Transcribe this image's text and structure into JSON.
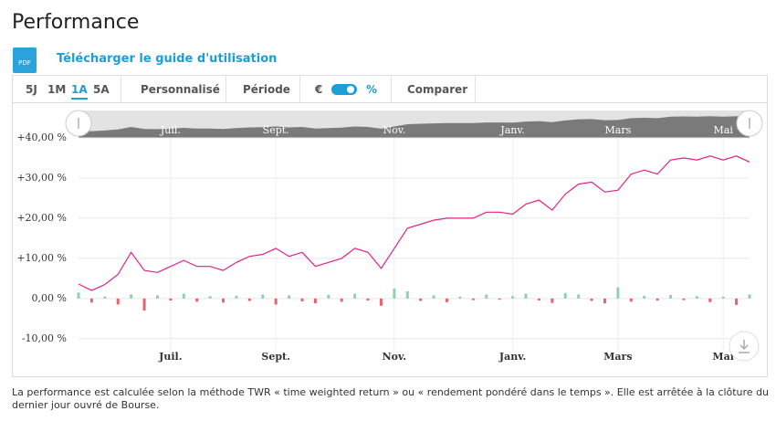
{
  "header": {
    "title": "Performance",
    "pdf_icon": "PDF",
    "guide_link": "Télécharger le guide d'utilisation"
  },
  "toolbar": {
    "ranges": [
      "5J",
      "1M",
      "1A",
      "5A"
    ],
    "custom": "Personnalisé",
    "period": "Période",
    "currency": "€",
    "percent": "%",
    "compare": "Comparer"
  },
  "chart_data": {
    "type": "line",
    "categories": [
      null,
      null,
      null,
      null,
      null,
      null,
      null,
      "Juil.",
      null,
      null,
      null,
      null,
      null,
      null,
      null,
      "Sept.",
      null,
      null,
      null,
      null,
      null,
      null,
      null,
      null,
      "Nov.",
      null,
      null,
      null,
      null,
      null,
      null,
      null,
      null,
      "Janv.",
      null,
      null,
      null,
      null,
      null,
      null,
      null,
      "Mars",
      null,
      null,
      null,
      null,
      null,
      null,
      null,
      "Mai",
      null,
      null
    ],
    "series": [
      {
        "color": "#e0218a",
        "values": [
          3.6,
          2,
          3.5,
          6,
          11.5,
          7,
          6.5,
          8,
          9.5,
          8,
          8,
          7,
          9,
          10.5,
          11,
          12.5,
          10.5,
          11.5,
          8,
          9,
          10,
          12.5,
          11.5,
          7.5,
          12.5,
          17.5,
          18.5,
          19.5,
          20,
          20,
          20,
          21.5,
          21.5,
          21,
          23.5,
          24.5,
          22,
          26,
          28.5,
          29,
          26.5,
          27,
          31,
          32,
          31,
          34.5,
          35,
          34.5,
          35.5,
          34.5,
          35.5,
          34
        ]
      },
      {
        "type": "bar",
        "pos_color": "#8ed1b6",
        "neg_color": "#e8636f",
        "values": [
          1.5,
          -1,
          0.5,
          -1.5,
          1,
          -3,
          0.8,
          -0.5,
          1.2,
          -0.8,
          0.6,
          -1,
          0.7,
          -0.6,
          1,
          -1.5,
          0.8,
          -0.7,
          -1.2,
          0.9,
          -0.8,
          1.2,
          -0.5,
          -1.8,
          2.5,
          1.8,
          -0.6,
          0.8,
          -0.9,
          0.5,
          -0.4,
          1.0,
          -0.3,
          0.6,
          1.2,
          -0.5,
          -1.1,
          1.4,
          1.0,
          -0.6,
          -1.2,
          2.8,
          -0.8,
          0.7,
          -0.5,
          0.9,
          -0.4,
          0.6,
          -0.9,
          0.5,
          -1.6,
          1.0
        ]
      }
    ],
    "ylim": [
      -13,
      40
    ],
    "yticks": [
      {
        "value": -10,
        "label": "-10,00 %"
      },
      {
        "value": 0,
        "label": "0,00 %"
      },
      {
        "value": 10,
        "label": "+10,00 %"
      },
      {
        "value": 20,
        "label": "+20,00 %"
      },
      {
        "value": 30,
        "label": "+30,00 %"
      },
      {
        "value": 40,
        "label": "+40,00 %"
      }
    ],
    "grid": true
  },
  "footnote": "La performance est calculée selon la méthode TWR « time weighted return » ou « rendement pondéré dans le temps ». Elle est arrêtée à la clôture du dernier jour ouvré de Bourse."
}
